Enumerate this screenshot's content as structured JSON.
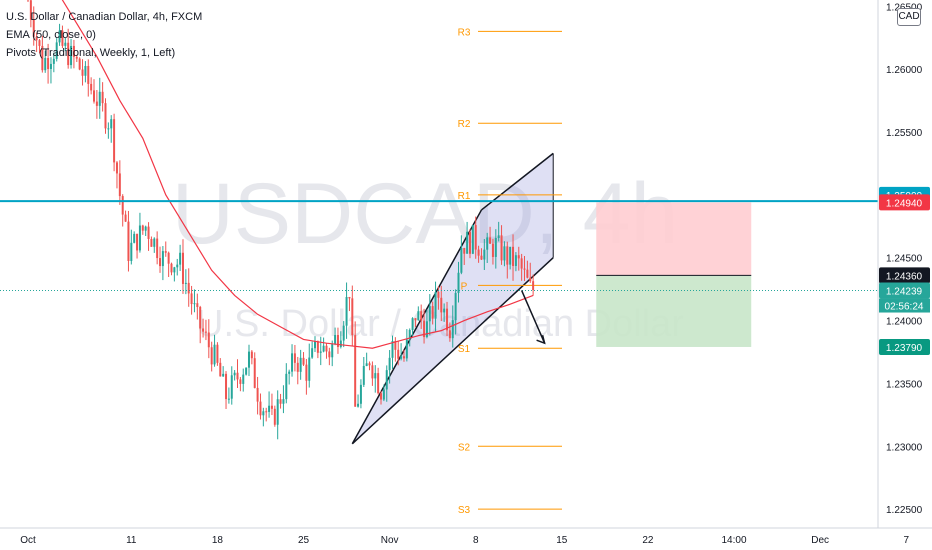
{
  "header": {
    "title": "U.S. Dollar / Canadian Dollar, 4h, FXCM",
    "indicator1": "EMA (50, close, 0)",
    "indicator2": "Pivots (Traditional, Weekly, 1, Left)"
  },
  "currency_button": "CAD",
  "watermark": {
    "symbol": "USDCAD, 4h",
    "name": "U.S. Dollar / Canadian Dollar"
  },
  "colors": {
    "up": "#26a69a",
    "down": "#ef5350",
    "ema": "#f23645",
    "pivot": "#ff9800",
    "resistance": "#00a3c4",
    "channel_fill": "#9598d9",
    "stop_zone": "#ffcdd2",
    "target_zone": "#c8e6c9"
  },
  "chart_data": {
    "type": "candlestick",
    "symbol": "USDCAD",
    "timeframe": "4h",
    "ylim": [
      1.2235,
      1.2655
    ],
    "y_ticks": [
      "1.22500",
      "1.23000",
      "1.23500",
      "1.24000",
      "1.24500",
      "1.25000",
      "1.25500",
      "1.26000",
      "1.26500"
    ],
    "x_ticks": [
      "Oct",
      "11",
      "18",
      "25",
      "Nov",
      "8",
      "15",
      "22",
      "14:00",
      "Dec",
      "7"
    ],
    "x_tick_index": [
      0,
      36,
      66,
      96,
      126,
      156,
      186,
      216,
      246,
      276,
      306
    ],
    "price_path": [
      [
        0,
        1.2665
      ],
      [
        6,
        1.2605
      ],
      [
        12,
        1.262
      ],
      [
        18,
        1.2605
      ],
      [
        24,
        1.258
      ],
      [
        30,
        1.2555
      ],
      [
        33,
        1.25
      ],
      [
        36,
        1.2455
      ],
      [
        42,
        1.2475
      ],
      [
        48,
        1.245
      ],
      [
        54,
        1.2445
      ],
      [
        60,
        1.24
      ],
      [
        66,
        1.237
      ],
      [
        70,
        1.234
      ],
      [
        74,
        1.2355
      ],
      [
        78,
        1.237
      ],
      [
        82,
        1.2335
      ],
      [
        86,
        1.232
      ],
      [
        90,
        1.2345
      ],
      [
        94,
        1.237
      ],
      [
        98,
        1.236
      ],
      [
        102,
        1.238
      ],
      [
        106,
        1.2375
      ],
      [
        110,
        1.2395
      ],
      [
        113,
        1.2425
      ],
      [
        115,
        1.233
      ],
      [
        120,
        1.237
      ],
      [
        124,
        1.2345
      ],
      [
        128,
        1.238
      ],
      [
        132,
        1.237
      ],
      [
        136,
        1.2405
      ],
      [
        140,
        1.2395
      ],
      [
        144,
        1.242
      ],
      [
        148,
        1.2395
      ],
      [
        152,
        1.246
      ],
      [
        156,
        1.2465
      ],
      [
        160,
        1.2455
      ],
      [
        164,
        1.246
      ],
      [
        168,
        1.245
      ],
      [
        172,
        1.2445
      ],
      [
        176,
        1.2425
      ]
    ],
    "ema_path": [
      [
        0,
        1.27
      ],
      [
        8,
        1.267
      ],
      [
        16,
        1.264
      ],
      [
        24,
        1.261
      ],
      [
        32,
        1.2575
      ],
      [
        40,
        1.2545
      ],
      [
        48,
        1.25
      ],
      [
        56,
        1.247
      ],
      [
        64,
        1.244
      ],
      [
        72,
        1.242
      ],
      [
        80,
        1.2405
      ],
      [
        88,
        1.2395
      ],
      [
        96,
        1.2385
      ],
      [
        104,
        1.2382
      ],
      [
        112,
        1.238
      ],
      [
        120,
        1.2378
      ],
      [
        128,
        1.2383
      ],
      [
        136,
        1.2388
      ],
      [
        144,
        1.2392
      ],
      [
        152,
        1.24
      ],
      [
        160,
        1.2407
      ],
      [
        168,
        1.2413
      ],
      [
        176,
        1.242
      ]
    ],
    "pivots": [
      {
        "label": "R3",
        "value": 1.263
      },
      {
        "label": "R2",
        "value": 1.2557
      },
      {
        "label": "R1",
        "value": 1.25
      },
      {
        "label": "P",
        "value": 1.2428
      },
      {
        "label": "S1",
        "value": 1.2378
      },
      {
        "label": "S2",
        "value": 1.23
      },
      {
        "label": "S3",
        "value": 1.225
      }
    ],
    "resistance_line": 1.2495,
    "channel": {
      "upper": [
        [
          158,
          1.2488
        ],
        [
          183,
          1.2533
        ]
      ],
      "lower": [
        [
          113,
          1.2302
        ],
        [
          183,
          1.245
        ]
      ]
    },
    "arrow": [
      [
        172,
        1.2424
      ],
      [
        180,
        1.2382
      ]
    ],
    "position": {
      "start_index": 198,
      "end_index": 252,
      "entry": 1.2436,
      "stop": 1.2494,
      "target": 1.2379
    },
    "price_labels": [
      {
        "text": "1.25000",
        "value": 1.25,
        "color": "#00a3c4"
      },
      {
        "text": "1.24940",
        "value": 1.2494,
        "color": "#f23645"
      },
      {
        "text": "1.24360",
        "value": 1.2436,
        "color": "#131722"
      },
      {
        "text": "1.24239",
        "value": 1.24239,
        "color": "#26a69a"
      },
      {
        "text": "1.23790",
        "value": 1.2379,
        "color": "#089981"
      }
    ],
    "countdown": "02:56:24",
    "current_price": 1.24239
  }
}
